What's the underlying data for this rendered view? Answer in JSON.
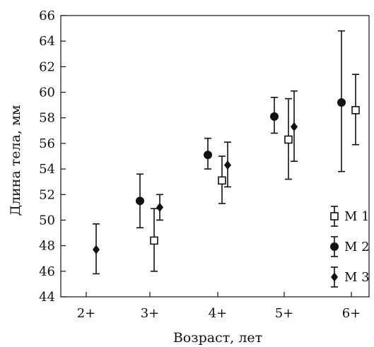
{
  "chart_data": {
    "type": "scatter",
    "xlabel": "Возраст, лет",
    "ylabel": "Длина тела, мм",
    "categories": [
      "2+",
      "3+",
      "4+",
      "5+",
      "6+"
    ],
    "ylim": [
      44,
      66
    ],
    "yticks": [
      44,
      46,
      48,
      50,
      52,
      54,
      56,
      58,
      60,
      62,
      64,
      66
    ],
    "grid": false,
    "legend_position": "right",
    "series": [
      {
        "name": "М 1",
        "marker": "open-square",
        "color": "#111111",
        "points": [
          {
            "x": "3+",
            "y": 48.4,
            "low": 46.0,
            "high": 50.9
          },
          {
            "x": "4+",
            "y": 53.1,
            "low": 51.3,
            "high": 55.0
          },
          {
            "x": "5+",
            "y": 56.3,
            "low": 53.2,
            "high": 59.5
          },
          {
            "x": "6+",
            "y": 58.6,
            "low": 55.9,
            "high": 61.4
          }
        ]
      },
      {
        "name": "М 2",
        "marker": "filled-circle",
        "color": "#111111",
        "points": [
          {
            "x": "3+",
            "y": 51.5,
            "low": 49.4,
            "high": 53.6
          },
          {
            "x": "4+",
            "y": 55.1,
            "low": 54.0,
            "high": 56.4
          },
          {
            "x": "5+",
            "y": 58.1,
            "low": 56.8,
            "high": 59.6
          },
          {
            "x": "6+",
            "y": 59.2,
            "low": 53.8,
            "high": 64.8
          }
        ]
      },
      {
        "name": "М 3",
        "marker": "filled-diamond",
        "color": "#111111",
        "points": [
          {
            "x": "2+",
            "y": 47.7,
            "low": 45.8,
            "high": 49.7
          },
          {
            "x": "3+",
            "y": 51.0,
            "low": 50.0,
            "high": 52.0
          },
          {
            "x": "4+",
            "y": 54.3,
            "low": 52.6,
            "high": 56.1
          },
          {
            "x": "5+",
            "y": 57.3,
            "low": 54.6,
            "high": 60.1
          }
        ]
      }
    ]
  }
}
